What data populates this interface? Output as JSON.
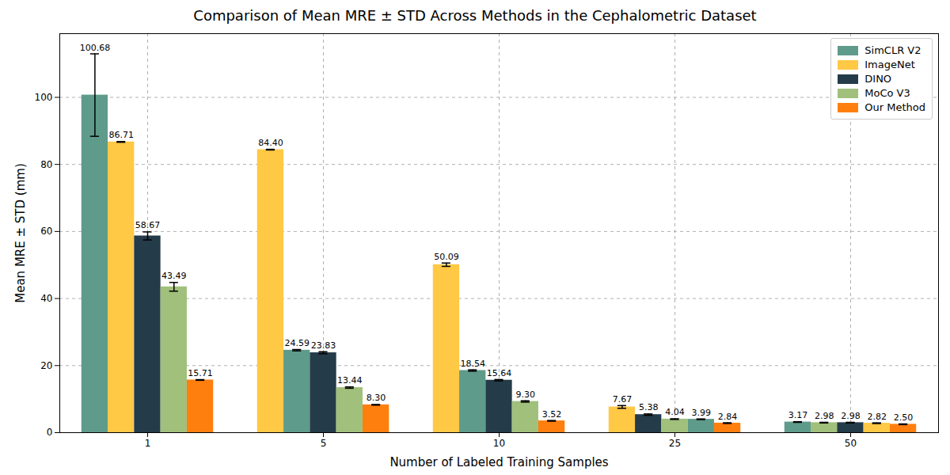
{
  "chart_data": {
    "type": "bar",
    "title": "Comparison of Mean MRE ± STD Across Methods in the Cephalometric Dataset",
    "x_label": "Number of Labeled Training Samples",
    "y_label": "Mean MRE ± STD (mm)",
    "categories": [
      "1",
      "5",
      "10",
      "25",
      "50"
    ],
    "series": [
      {
        "name": "SimCLR V2",
        "color": "#5f9b8a",
        "values": [
          100.68,
          24.59,
          18.54,
          3.99,
          3.17
        ],
        "value_labels": [
          "100.68",
          "24.59",
          "18.54",
          "3.99",
          "3.17"
        ],
        "errors": [
          12.3,
          0.2,
          0.2,
          0.1,
          0.1
        ]
      },
      {
        "name": "ImageNet",
        "color": "#ffc845",
        "values": [
          86.71,
          84.4,
          50.09,
          7.67,
          2.82
        ],
        "value_labels": [
          "86.71",
          "84.40",
          "50.09",
          "7.67",
          "2.82"
        ],
        "errors": [
          0.1,
          0.1,
          0.5,
          0.4,
          0.1
        ]
      },
      {
        "name": "DINO",
        "color": "#243b4a",
        "values": [
          58.67,
          23.83,
          15.64,
          5.38,
          2.98
        ],
        "value_labels": [
          "58.67",
          "23.83",
          "15.64",
          "5.38",
          "2.98"
        ],
        "errors": [
          1.2,
          0.3,
          0.2,
          0.2,
          0.1
        ]
      },
      {
        "name": "MoCo V3",
        "color": "#a0c07c",
        "values": [
          43.49,
          13.44,
          9.3,
          4.04,
          2.98
        ],
        "value_labels": [
          "43.49",
          "13.44",
          "9.30",
          "4.04",
          "2.98"
        ],
        "errors": [
          1.3,
          0.2,
          0.2,
          0.1,
          0.1
        ]
      },
      {
        "name": "Our Method",
        "color": "#ff7f0e",
        "values": [
          15.71,
          8.3,
          3.52,
          2.84,
          2.5
        ],
        "value_labels": [
          "15.71",
          "8.30",
          "3.52",
          "2.84",
          "2.50"
        ],
        "errors": [
          0.1,
          0.1,
          0.1,
          0.1,
          0.1
        ]
      }
    ],
    "ylim": [
      0,
      119
    ],
    "yticks": [
      0,
      20,
      40,
      60,
      80,
      100
    ],
    "grid": true,
    "legend": "upper right",
    "data_labels": true
  }
}
